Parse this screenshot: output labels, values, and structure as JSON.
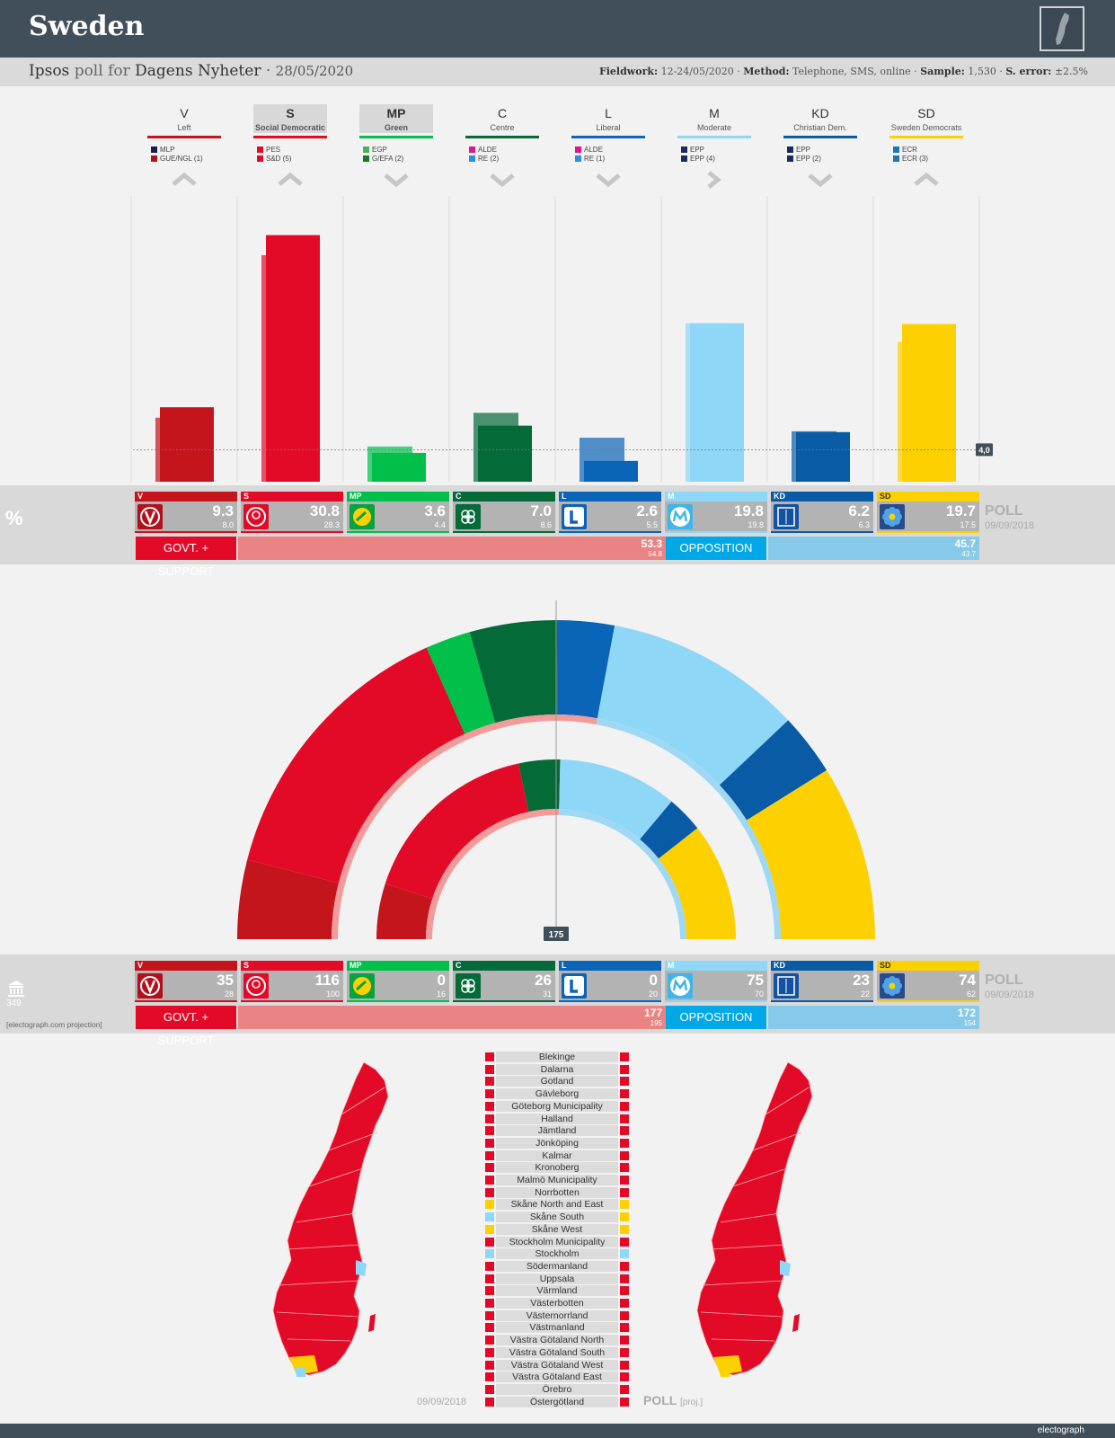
{
  "header": {
    "country": "Sweden",
    "pollster": "Ipsos",
    "poll_for": "poll for",
    "client": "Dagens Nyheter",
    "date": "28/05/2020",
    "fieldwork_label": "Fieldwork:",
    "fieldwork": "12-24/05/2020",
    "method_label": "Method:",
    "method": "Telephone, SMS, online",
    "sample_label": "Sample:",
    "sample": "1,530",
    "error_label": "S. error:",
    "error": "±2.5%"
  },
  "parties": [
    {
      "abbr": "V",
      "name": "Left",
      "color": "#c4151c",
      "groups": [
        {
          "color": "#1c1c4a",
          "label": "MLP"
        },
        {
          "color": "#b3101c",
          "label": "GUE/NGL (1)"
        }
      ],
      "trend": "up",
      "pct": 9.3,
      "prev_pct": 8.0,
      "seats": 35,
      "prev_seats": 28
    },
    {
      "abbr": "S",
      "name": "Social Democratic",
      "color": "#e30a28",
      "highlight": true,
      "groups": [
        {
          "color": "#e30a28",
          "label": "PES"
        },
        {
          "color": "#e30a28",
          "label": "S&D (5)"
        }
      ],
      "trend": "up",
      "pct": 30.8,
      "prev_pct": 28.3,
      "seats": 116,
      "prev_seats": 100
    },
    {
      "abbr": "MP",
      "name": "Green",
      "color": "#00c04a",
      "highlight": true,
      "groups": [
        {
          "color": "#45b35a",
          "label": "EGP"
        },
        {
          "color": "#157a2e",
          "label": "G/EFA (2)"
        }
      ],
      "trend": "down",
      "pct": 3.6,
      "prev_pct": 4.4,
      "seats": 0,
      "prev_seats": 16
    },
    {
      "abbr": "C",
      "name": "Centre",
      "color": "#036a38",
      "groups": [
        {
          "color": "#e0168c",
          "label": "ALDE"
        },
        {
          "color": "#2b8fe0",
          "label": "RE (2)"
        }
      ],
      "trend": "down",
      "pct": 7.0,
      "prev_pct": 8.6,
      "seats": 26,
      "prev_seats": 31
    },
    {
      "abbr": "L",
      "name": "Liberal",
      "color": "#0a64b7",
      "groups": [
        {
          "color": "#e0168c",
          "label": "ALDE"
        },
        {
          "color": "#2b8fe0",
          "label": "RE (1)"
        }
      ],
      "trend": "down",
      "pct": 2.6,
      "prev_pct": 5.5,
      "seats": 0,
      "prev_seats": 20
    },
    {
      "abbr": "M",
      "name": "Moderate",
      "color": "#8fd7f7",
      "groups": [
        {
          "color": "#1c2a5e",
          "label": "EPP"
        },
        {
          "color": "#1c2a5e",
          "label": "EPP (4)"
        }
      ],
      "trend": "right",
      "pct": 19.8,
      "prev_pct": 19.8,
      "seats": 75,
      "prev_seats": 70
    },
    {
      "abbr": "KD",
      "name": "Christian Dem.",
      "color": "#0a5ba6",
      "groups": [
        {
          "color": "#1c2a5e",
          "label": "EPP"
        },
        {
          "color": "#1c2a5e",
          "label": "EPP (2)"
        }
      ],
      "trend": "down",
      "pct": 6.2,
      "prev_pct": 6.3,
      "seats": 23,
      "prev_seats": 22
    },
    {
      "abbr": "SD",
      "name": "Sweden Democrats",
      "color": "#fdd000",
      "groups": [
        {
          "color": "#1b78b4",
          "label": "ECR"
        },
        {
          "color": "#1b78b4",
          "label": "ECR (3)"
        }
      ],
      "trend": "up",
      "pct": 19.7,
      "prev_pct": 17.5,
      "seats": 74,
      "prev_seats": 62
    }
  ],
  "chart_data": [
    {
      "type": "bar",
      "categories": [
        "V",
        "S",
        "MP",
        "C",
        "L",
        "M",
        "KD",
        "SD"
      ],
      "series": [
        {
          "name": "POLL",
          "values": [
            9.3,
            30.8,
            3.6,
            7.0,
            2.6,
            19.8,
            6.2,
            19.7
          ]
        },
        {
          "name": "09/09/2018",
          "values": [
            8.0,
            28.3,
            4.4,
            8.6,
            5.5,
            19.8,
            6.3,
            17.5
          ]
        }
      ],
      "threshold": 4.0,
      "threshold_label": "4,0",
      "ylim": [
        0,
        33
      ]
    },
    {
      "type": "pie",
      "subtype": "hemicycle",
      "total": 349,
      "majority": 175,
      "majority_label": "175",
      "categories": [
        "V",
        "S",
        "MP",
        "C",
        "L",
        "M",
        "KD",
        "SD"
      ],
      "series": [
        {
          "name": "POLL",
          "values": [
            35,
            116,
            0,
            26,
            0,
            75,
            23,
            74
          ]
        },
        {
          "name": "09/09/2018",
          "values": [
            28,
            100,
            16,
            31,
            20,
            70,
            22,
            62
          ]
        }
      ]
    }
  ],
  "vote_block": {
    "unit": "%",
    "poll_label": "POLL",
    "prev_date": "09/09/2018",
    "govt_label": "GOVT. + SUPPORT",
    "govt_value": "53.3",
    "govt_prev": "54.8",
    "govt_share": 0.533,
    "opp_label": "OPPOSITION",
    "opp_value": "45.7",
    "opp_prev": "43.7"
  },
  "seat_block": {
    "total": "349",
    "note": "[electograph.com projection]",
    "poll_label": "POLL",
    "prev_date": "09/09/2018",
    "govt_label": "GOVT. + SUPPORT",
    "govt_value": "177",
    "govt_prev": "195",
    "govt_share": 0.507,
    "opp_label": "OPPOSITION",
    "opp_value": "172",
    "opp_prev": "154"
  },
  "regions": [
    {
      "name": "Blekinge",
      "prev": "#e30a28",
      "poll": "#e30a28"
    },
    {
      "name": "Dalarna",
      "prev": "#e30a28",
      "poll": "#e30a28"
    },
    {
      "name": "Gotland",
      "prev": "#e30a28",
      "poll": "#e30a28"
    },
    {
      "name": "Gävleborg",
      "prev": "#e30a28",
      "poll": "#e30a28"
    },
    {
      "name": "Göteborg Municipality",
      "prev": "#e30a28",
      "poll": "#e30a28"
    },
    {
      "name": "Halland",
      "prev": "#e30a28",
      "poll": "#e30a28"
    },
    {
      "name": "Jämtland",
      "prev": "#e30a28",
      "poll": "#e30a28"
    },
    {
      "name": "Jönköping",
      "prev": "#e30a28",
      "poll": "#e30a28"
    },
    {
      "name": "Kalmar",
      "prev": "#e30a28",
      "poll": "#e30a28"
    },
    {
      "name": "Kronoberg",
      "prev": "#e30a28",
      "poll": "#e30a28"
    },
    {
      "name": "Malmö Municipality",
      "prev": "#e30a28",
      "poll": "#e30a28"
    },
    {
      "name": "Norrbotten",
      "prev": "#e30a28",
      "poll": "#e30a28"
    },
    {
      "name": "Skåne North and East",
      "prev": "#fdd000",
      "poll": "#fdd000"
    },
    {
      "name": "Skåne South",
      "prev": "#8fd7f7",
      "poll": "#fdd000"
    },
    {
      "name": "Skåne West",
      "prev": "#fdd000",
      "poll": "#fdd000"
    },
    {
      "name": "Stockholm Municipality",
      "prev": "#e30a28",
      "poll": "#e30a28"
    },
    {
      "name": "Stockholm",
      "prev": "#8fd7f7",
      "poll": "#8fd7f7"
    },
    {
      "name": "Södermanland",
      "prev": "#e30a28",
      "poll": "#e30a28"
    },
    {
      "name": "Uppsala",
      "prev": "#e30a28",
      "poll": "#e30a28"
    },
    {
      "name": "Värmland",
      "prev": "#e30a28",
      "poll": "#e30a28"
    },
    {
      "name": "Västerbotten",
      "prev": "#e30a28",
      "poll": "#e30a28"
    },
    {
      "name": "Västernorrland",
      "prev": "#e30a28",
      "poll": "#e30a28"
    },
    {
      "name": "Västmanland",
      "prev": "#e30a28",
      "poll": "#e30a28"
    },
    {
      "name": "Västra Götaland North",
      "prev": "#e30a28",
      "poll": "#e30a28"
    },
    {
      "name": "Västra Götaland South",
      "prev": "#e30a28",
      "poll": "#e30a28"
    },
    {
      "name": "Västra Götaland West",
      "prev": "#e30a28",
      "poll": "#e30a28"
    },
    {
      "name": "Västra Götaland East",
      "prev": "#e30a28",
      "poll": "#e30a28"
    },
    {
      "name": "Örebro",
      "prev": "#e30a28",
      "poll": "#e30a28"
    },
    {
      "name": "Östergötland",
      "prev": "#e30a28",
      "poll": "#e30a28"
    }
  ],
  "maps": {
    "left_date": "09/09/2018",
    "right_label": "POLL",
    "right_note": "[proj.]",
    "base_color": "#e30a28",
    "yellow": "#fdd000",
    "blue": "#8fd7f7"
  },
  "footer": {
    "brand": "electograph"
  }
}
